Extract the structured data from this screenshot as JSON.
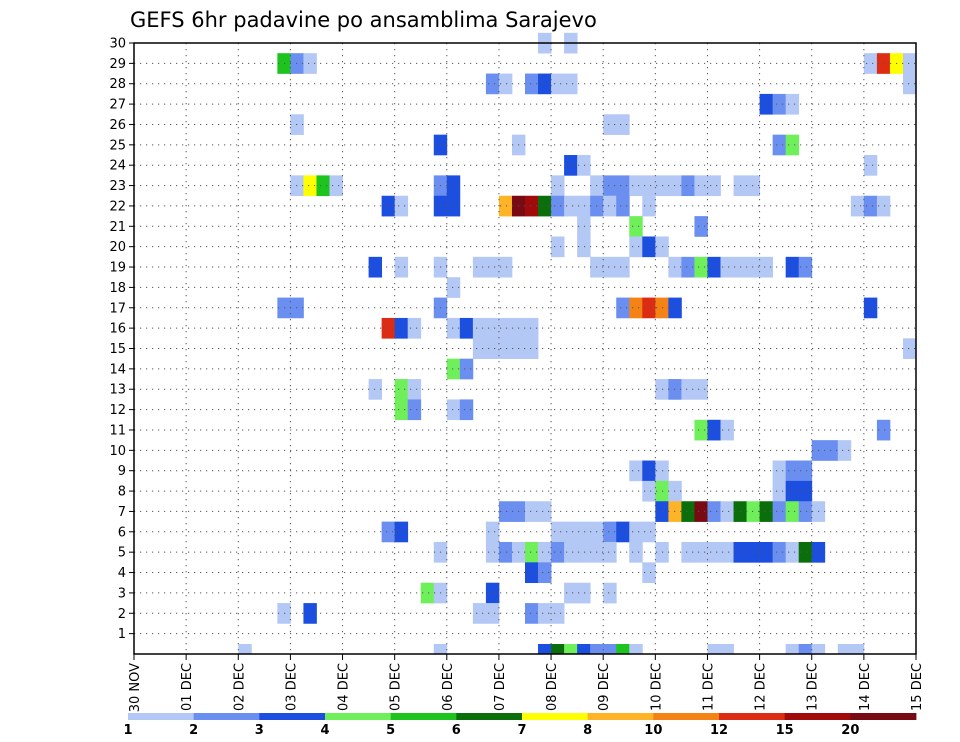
{
  "chart_data": {
    "type": "heatmap",
    "title": "GEFS 6hr padavine po ansamblima Sarajevo",
    "xlabel": "",
    "ylabel": "",
    "x_ticks": [
      "30 NOV",
      "01 DEC",
      "02 DEC",
      "03 DEC",
      "04 DEC",
      "05 DEC",
      "06 DEC",
      "07 DEC",
      "08 DEC",
      "09 DEC",
      "10 DEC",
      "11 DEC",
      "12 DEC",
      "13 DEC",
      "14 DEC",
      "15 DEC"
    ],
    "x_range": [
      0,
      15
    ],
    "y_ticks": [
      1,
      2,
      3,
      4,
      5,
      6,
      7,
      8,
      9,
      10,
      11,
      12,
      13,
      14,
      15,
      16,
      17,
      18,
      19,
      20,
      21,
      22,
      23,
      24,
      25,
      26,
      27,
      28,
      29,
      30
    ],
    "y_range": [
      0,
      30
    ],
    "steps_per_day": 4,
    "grid": true,
    "colorbar": {
      "position": "bottom",
      "labels": [
        "1",
        "2",
        "3",
        "4",
        "5",
        "6",
        "7",
        "8",
        "10",
        "12",
        "15",
        "20"
      ],
      "colors": [
        "#b4c8f5",
        "#6b8ff0",
        "#1c4ee0",
        "#6ff05a",
        "#1ec41e",
        "#0a6e0a",
        "#ffff00",
        "#ffb428",
        "#f58214",
        "#dc2d14",
        "#a00a0a",
        "#780a14"
      ]
    },
    "cells": [
      {
        "member": 30,
        "cells": [
          [
            31,
            1
          ],
          [
            33,
            1
          ]
        ]
      },
      {
        "member": 29,
        "cells": [
          [
            11,
            5
          ],
          [
            12,
            2
          ],
          [
            13,
            1
          ],
          [
            56,
            1
          ],
          [
            57,
            10
          ],
          [
            58,
            7
          ],
          [
            59,
            1
          ]
        ]
      },
      {
        "member": 28,
        "cells": [
          [
            27,
            2
          ],
          [
            28,
            1
          ],
          [
            30,
            2
          ],
          [
            31,
            3
          ],
          [
            32,
            1
          ],
          [
            33,
            1
          ],
          [
            59,
            1
          ]
        ]
      },
      {
        "member": 27,
        "cells": [
          [
            48,
            3
          ],
          [
            49,
            2
          ],
          [
            50,
            1
          ]
        ]
      },
      {
        "member": 26,
        "cells": [
          [
            12,
            1
          ],
          [
            36,
            1
          ],
          [
            37,
            1
          ]
        ]
      },
      {
        "member": 25,
        "cells": [
          [
            23,
            3
          ],
          [
            29,
            1
          ],
          [
            49,
            2
          ],
          [
            50,
            4
          ]
        ]
      },
      {
        "member": 24,
        "cells": [
          [
            33,
            3
          ],
          [
            34,
            1
          ],
          [
            56,
            1
          ]
        ]
      },
      {
        "member": 23,
        "cells": [
          [
            12,
            1
          ],
          [
            13,
            7
          ],
          [
            14,
            5
          ],
          [
            15,
            1
          ],
          [
            23,
            2
          ],
          [
            24,
            3
          ],
          [
            32,
            1
          ],
          [
            35,
            1
          ],
          [
            36,
            2
          ],
          [
            37,
            2
          ],
          [
            38,
            1
          ],
          [
            39,
            1
          ],
          [
            40,
            1
          ],
          [
            41,
            1
          ],
          [
            42,
            2
          ],
          [
            43,
            1
          ],
          [
            44,
            1
          ],
          [
            46,
            1
          ],
          [
            47,
            1
          ]
        ]
      },
      {
        "member": 22,
        "cells": [
          [
            19,
            3
          ],
          [
            20,
            1
          ],
          [
            23,
            3
          ],
          [
            24,
            3
          ],
          [
            28,
            8
          ],
          [
            29,
            12
          ],
          [
            30,
            11
          ],
          [
            31,
            6
          ],
          [
            32,
            2
          ],
          [
            33,
            1
          ],
          [
            34,
            1
          ],
          [
            35,
            2
          ],
          [
            36,
            1
          ],
          [
            37,
            2
          ],
          [
            39,
            1
          ],
          [
            55,
            1
          ],
          [
            56,
            2
          ],
          [
            57,
            1
          ]
        ]
      },
      {
        "member": 21,
        "cells": [
          [
            34,
            1
          ],
          [
            38,
            4
          ],
          [
            43,
            2
          ]
        ]
      },
      {
        "member": 20,
        "cells": [
          [
            32,
            1
          ],
          [
            34,
            1
          ],
          [
            38,
            1
          ],
          [
            39,
            3
          ],
          [
            40,
            1
          ]
        ]
      },
      {
        "member": 19,
        "cells": [
          [
            18,
            3
          ],
          [
            20,
            1
          ],
          [
            23,
            1
          ],
          [
            26,
            1
          ],
          [
            27,
            1
          ],
          [
            28,
            1
          ],
          [
            35,
            1
          ],
          [
            36,
            1
          ],
          [
            37,
            1
          ],
          [
            41,
            1
          ],
          [
            42,
            2
          ],
          [
            43,
            4
          ],
          [
            44,
            3
          ],
          [
            45,
            1
          ],
          [
            46,
            1
          ],
          [
            47,
            1
          ],
          [
            48,
            1
          ],
          [
            50,
            3
          ],
          [
            51,
            2
          ]
        ]
      },
      {
        "member": 18,
        "cells": [
          [
            24,
            1
          ]
        ]
      },
      {
        "member": 17,
        "cells": [
          [
            11,
            2
          ],
          [
            12,
            2
          ],
          [
            23,
            2
          ],
          [
            37,
            2
          ],
          [
            38,
            9
          ],
          [
            39,
            10
          ],
          [
            40,
            9
          ],
          [
            41,
            3
          ],
          [
            56,
            3
          ]
        ]
      },
      {
        "member": 16,
        "cells": [
          [
            19,
            10
          ],
          [
            20,
            3
          ],
          [
            21,
            1
          ],
          [
            24,
            1
          ],
          [
            25,
            3
          ],
          [
            26,
            1
          ],
          [
            27,
            1
          ],
          [
            28,
            1
          ],
          [
            29,
            1
          ],
          [
            30,
            1
          ]
        ]
      },
      {
        "member": 15,
        "cells": [
          [
            26,
            1
          ],
          [
            27,
            1
          ],
          [
            28,
            1
          ],
          [
            29,
            1
          ],
          [
            30,
            1
          ],
          [
            59,
            1
          ]
        ]
      },
      {
        "member": 14,
        "cells": [
          [
            24,
            4
          ],
          [
            25,
            2
          ]
        ]
      },
      {
        "member": 13,
        "cells": [
          [
            18,
            1
          ],
          [
            20,
            4
          ],
          [
            21,
            1
          ],
          [
            40,
            1
          ],
          [
            41,
            2
          ],
          [
            42,
            1
          ],
          [
            43,
            1
          ]
        ]
      },
      {
        "member": 12,
        "cells": [
          [
            20,
            4
          ],
          [
            21,
            2
          ],
          [
            24,
            1
          ],
          [
            25,
            2
          ]
        ]
      },
      {
        "member": 11,
        "cells": [
          [
            43,
            4
          ],
          [
            44,
            3
          ],
          [
            45,
            1
          ],
          [
            57,
            2
          ]
        ]
      },
      {
        "member": 10,
        "cells": [
          [
            52,
            2
          ],
          [
            53,
            2
          ],
          [
            54,
            1
          ]
        ]
      },
      {
        "member": 9,
        "cells": [
          [
            38,
            1
          ],
          [
            39,
            3
          ],
          [
            40,
            1
          ],
          [
            49,
            1
          ],
          [
            50,
            2
          ],
          [
            51,
            2
          ]
        ]
      },
      {
        "member": 8,
        "cells": [
          [
            39,
            1
          ],
          [
            40,
            4
          ],
          [
            41,
            1
          ],
          [
            49,
            1
          ],
          [
            50,
            3
          ],
          [
            51,
            3
          ]
        ]
      },
      {
        "member": 7,
        "cells": [
          [
            28,
            2
          ],
          [
            29,
            2
          ],
          [
            30,
            1
          ],
          [
            31,
            1
          ],
          [
            40,
            3
          ],
          [
            41,
            8
          ],
          [
            42,
            6
          ],
          [
            43,
            12
          ],
          [
            44,
            2
          ],
          [
            45,
            1
          ],
          [
            46,
            6
          ],
          [
            47,
            4
          ],
          [
            48,
            6
          ],
          [
            49,
            2
          ],
          [
            50,
            4
          ],
          [
            51,
            2
          ],
          [
            52,
            1
          ]
        ]
      },
      {
        "member": 6,
        "cells": [
          [
            19,
            2
          ],
          [
            20,
            3
          ],
          [
            27,
            1
          ],
          [
            32,
            1
          ],
          [
            33,
            1
          ],
          [
            34,
            1
          ],
          [
            35,
            1
          ],
          [
            36,
            2
          ],
          [
            37,
            3
          ],
          [
            38,
            1
          ],
          [
            39,
            1
          ]
        ]
      },
      {
        "member": 5,
        "cells": [
          [
            23,
            1
          ],
          [
            27,
            1
          ],
          [
            28,
            2
          ],
          [
            29,
            1
          ],
          [
            30,
            4
          ],
          [
            31,
            1
          ],
          [
            32,
            2
          ],
          [
            33,
            1
          ],
          [
            34,
            1
          ],
          [
            35,
            1
          ],
          [
            36,
            1
          ],
          [
            38,
            1
          ],
          [
            40,
            1
          ],
          [
            42,
            1
          ],
          [
            43,
            1
          ],
          [
            44,
            1
          ],
          [
            45,
            1
          ],
          [
            46,
            3
          ],
          [
            47,
            3
          ],
          [
            48,
            3
          ],
          [
            49,
            2
          ],
          [
            50,
            1
          ],
          [
            51,
            6
          ],
          [
            52,
            3
          ]
        ]
      },
      {
        "member": 4,
        "cells": [
          [
            30,
            3
          ],
          [
            31,
            2
          ],
          [
            39,
            1
          ]
        ]
      },
      {
        "member": 3,
        "cells": [
          [
            22,
            4
          ],
          [
            23,
            1
          ],
          [
            27,
            3
          ],
          [
            33,
            1
          ],
          [
            34,
            1
          ],
          [
            36,
            1
          ]
        ]
      },
      {
        "member": 2,
        "cells": [
          [
            11,
            1
          ],
          [
            13,
            3
          ],
          [
            26,
            1
          ],
          [
            27,
            1
          ],
          [
            30,
            2
          ],
          [
            31,
            1
          ],
          [
            32,
            1
          ]
        ]
      },
      {
        "member": 0,
        "cells": [
          [
            8,
            1
          ],
          [
            23,
            1
          ],
          [
            31,
            3
          ],
          [
            32,
            6
          ],
          [
            33,
            4
          ],
          [
            34,
            3
          ],
          [
            35,
            2
          ],
          [
            36,
            2
          ],
          [
            37,
            5
          ],
          [
            38,
            1
          ],
          [
            44,
            1
          ],
          [
            45,
            1
          ],
          [
            50,
            1
          ],
          [
            51,
            2
          ],
          [
            52,
            1
          ],
          [
            54,
            1
          ],
          [
            55,
            1
          ]
        ]
      }
    ]
  }
}
